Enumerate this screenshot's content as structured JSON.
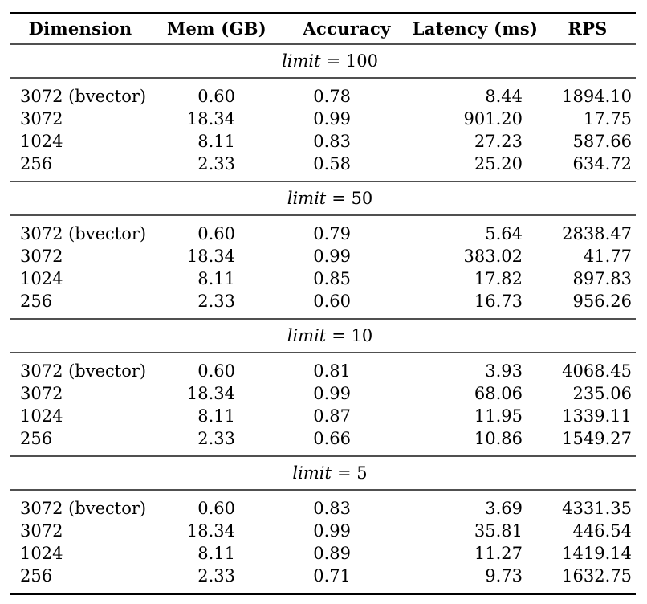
{
  "table": {
    "columns": [
      "Dimension",
      "Mem (GB)",
      "Accuracy",
      "Latency (ms)",
      "RPS"
    ],
    "column_keys": [
      "dimension",
      "mem-gb",
      "accuracy",
      "latency-ms",
      "rps"
    ],
    "sections": [
      {
        "label_var": "limit",
        "label_rest": "= 100",
        "rows": [
          [
            "3072 (bvector)",
            "0.60",
            "0.78",
            "8.44",
            "1894.10"
          ],
          [
            "3072",
            "18.34",
            "0.99",
            "901.20",
            "17.75"
          ],
          [
            "1024",
            "8.11",
            "0.83",
            "27.23",
            "587.66"
          ],
          [
            "256",
            "2.33",
            "0.58",
            "25.20",
            "634.72"
          ]
        ]
      },
      {
        "label_var": "limit",
        "label_rest": "= 50",
        "rows": [
          [
            "3072 (bvector)",
            "0.60",
            "0.79",
            "5.64",
            "2838.47"
          ],
          [
            "3072",
            "18.34",
            "0.99",
            "383.02",
            "41.77"
          ],
          [
            "1024",
            "8.11",
            "0.85",
            "17.82",
            "897.83"
          ],
          [
            "256",
            "2.33",
            "0.60",
            "16.73",
            "956.26"
          ]
        ]
      },
      {
        "label_var": "limit",
        "label_rest": "= 10",
        "rows": [
          [
            "3072 (bvector)",
            "0.60",
            "0.81",
            "3.93",
            "4068.45"
          ],
          [
            "3072",
            "18.34",
            "0.99",
            "68.06",
            "235.06"
          ],
          [
            "1024",
            "8.11",
            "0.87",
            "11.95",
            "1339.11"
          ],
          [
            "256",
            "2.33",
            "0.66",
            "10.86",
            "1549.27"
          ]
        ]
      },
      {
        "label_var": "limit",
        "label_rest": "= 5",
        "rows": [
          [
            "3072 (bvector)",
            "0.60",
            "0.83",
            "3.69",
            "4331.35"
          ],
          [
            "3072",
            "18.34",
            "0.99",
            "35.81",
            "446.54"
          ],
          [
            "1024",
            "8.11",
            "0.89",
            "11.27",
            "1419.14"
          ],
          [
            "256",
            "2.33",
            "0.71",
            "9.73",
            "1632.75"
          ]
        ]
      }
    ]
  },
  "colors": {
    "background": "#ffffff",
    "text": "#000000",
    "rule_heavy": "#000000",
    "rule_light": "#505050"
  }
}
